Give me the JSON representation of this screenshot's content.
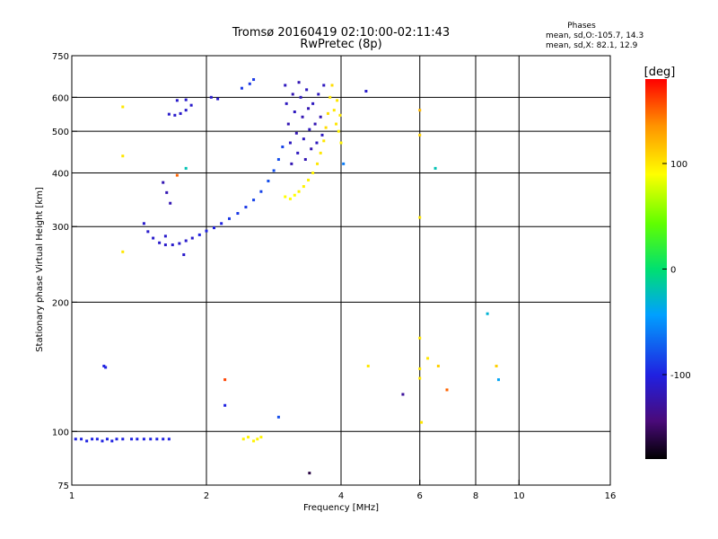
{
  "chart_data": {
    "type": "scatter",
    "title": "Tromsø 20160419 02:10:00-02:11:43",
    "subtitle": "RwPretec (8p)",
    "xlabel": "Frequency [MHz]",
    "ylabel": "Stationary phase Virtual Height [km]",
    "x_scale": "log",
    "y_scale": "log",
    "xlim": [
      1,
      16
    ],
    "ylim": [
      75,
      750
    ],
    "x_ticks": [
      1,
      2,
      4,
      6,
      8,
      10,
      16
    ],
    "y_ticks": [
      75,
      100,
      200,
      300,
      400,
      500,
      600,
      750
    ],
    "grid": true,
    "stats": {
      "heading": "Phases",
      "line_o": "mean, sd,O:-105.7, 14.3",
      "line_x": "mean, sd,X:  82.1, 12.9"
    },
    "colorbar": {
      "label": "[deg]",
      "ticks": [
        100,
        0,
        -100
      ],
      "range": [
        -180,
        180
      ]
    },
    "series": [
      {
        "points": [
          {
            "x": 1.02,
            "y": 96,
            "p": -100
          },
          {
            "x": 1.05,
            "y": 96,
            "p": -100
          },
          {
            "x": 1.08,
            "y": 95,
            "p": -100
          },
          {
            "x": 1.11,
            "y": 96,
            "p": -100
          },
          {
            "x": 1.14,
            "y": 96,
            "p": -100
          },
          {
            "x": 1.17,
            "y": 95,
            "p": -100
          },
          {
            "x": 1.2,
            "y": 96,
            "p": -100
          },
          {
            "x": 1.23,
            "y": 95,
            "p": -100
          },
          {
            "x": 1.26,
            "y": 96,
            "p": -100
          },
          {
            "x": 1.3,
            "y": 96,
            "p": -100
          },
          {
            "x": 1.36,
            "y": 96,
            "p": -100
          },
          {
            "x": 1.4,
            "y": 96,
            "p": -100
          },
          {
            "x": 1.45,
            "y": 96,
            "p": -100
          },
          {
            "x": 1.5,
            "y": 96,
            "p": -100
          },
          {
            "x": 1.55,
            "y": 96,
            "p": -100
          },
          {
            "x": 1.6,
            "y": 96,
            "p": -100
          },
          {
            "x": 1.65,
            "y": 96,
            "p": -100
          },
          {
            "x": 1.18,
            "y": 142,
            "p": -100
          },
          {
            "x": 1.19,
            "y": 141,
            "p": -100
          },
          {
            "x": 1.3,
            "y": 570,
            "p": 100
          },
          {
            "x": 1.3,
            "y": 438,
            "p": 100
          },
          {
            "x": 1.3,
            "y": 262,
            "p": 100
          },
          {
            "x": 1.45,
            "y": 305,
            "p": -110
          },
          {
            "x": 1.48,
            "y": 292,
            "p": -110
          },
          {
            "x": 1.52,
            "y": 282,
            "p": -110
          },
          {
            "x": 1.57,
            "y": 275,
            "p": -110
          },
          {
            "x": 1.62,
            "y": 272,
            "p": -110
          },
          {
            "x": 1.68,
            "y": 272,
            "p": -110
          },
          {
            "x": 1.74,
            "y": 274,
            "p": -110
          },
          {
            "x": 1.8,
            "y": 278,
            "p": -110
          },
          {
            "x": 1.86,
            "y": 282,
            "p": -110
          },
          {
            "x": 1.93,
            "y": 287,
            "p": -100
          },
          {
            "x": 2.0,
            "y": 293,
            "p": -100
          },
          {
            "x": 2.08,
            "y": 298,
            "p": -100
          },
          {
            "x": 2.16,
            "y": 305,
            "p": -100
          },
          {
            "x": 2.25,
            "y": 313,
            "p": -90
          },
          {
            "x": 2.35,
            "y": 322,
            "p": -90
          },
          {
            "x": 2.45,
            "y": 333,
            "p": -90
          },
          {
            "x": 2.55,
            "y": 346,
            "p": -85
          },
          {
            "x": 2.65,
            "y": 362,
            "p": -85
          },
          {
            "x": 2.75,
            "y": 383,
            "p": -80
          },
          {
            "x": 2.83,
            "y": 405,
            "p": -80
          },
          {
            "x": 2.9,
            "y": 430,
            "p": -80
          },
          {
            "x": 2.96,
            "y": 460,
            "p": -85
          },
          {
            "x": 1.6,
            "y": 380,
            "p": -120
          },
          {
            "x": 1.63,
            "y": 360,
            "p": -120
          },
          {
            "x": 1.66,
            "y": 340,
            "p": -120
          },
          {
            "x": 1.72,
            "y": 395,
            "p": 150
          },
          {
            "x": 1.65,
            "y": 548,
            "p": -110
          },
          {
            "x": 1.7,
            "y": 545,
            "p": -110
          },
          {
            "x": 1.75,
            "y": 550,
            "p": -110
          },
          {
            "x": 1.8,
            "y": 560,
            "p": -110
          },
          {
            "x": 1.85,
            "y": 575,
            "p": -110
          },
          {
            "x": 1.72,
            "y": 590,
            "p": -110
          },
          {
            "x": 1.8,
            "y": 592,
            "p": -110
          },
          {
            "x": 2.05,
            "y": 600,
            "p": -110
          },
          {
            "x": 2.12,
            "y": 595,
            "p": -110
          },
          {
            "x": 2.4,
            "y": 630,
            "p": -90
          },
          {
            "x": 2.5,
            "y": 645,
            "p": -90
          },
          {
            "x": 2.55,
            "y": 660,
            "p": -90
          },
          {
            "x": 3.0,
            "y": 640,
            "p": -115
          },
          {
            "x": 3.02,
            "y": 580,
            "p": -115
          },
          {
            "x": 3.05,
            "y": 520,
            "p": -120
          },
          {
            "x": 3.08,
            "y": 470,
            "p": -115
          },
          {
            "x": 3.1,
            "y": 420,
            "p": -120
          },
          {
            "x": 3.12,
            "y": 610,
            "p": -120
          },
          {
            "x": 3.15,
            "y": 555,
            "p": -115
          },
          {
            "x": 3.18,
            "y": 495,
            "p": -120
          },
          {
            "x": 3.2,
            "y": 445,
            "p": -115
          },
          {
            "x": 3.22,
            "y": 650,
            "p": -120
          },
          {
            "x": 3.25,
            "y": 600,
            "p": -115
          },
          {
            "x": 3.28,
            "y": 540,
            "p": -120
          },
          {
            "x": 3.3,
            "y": 480,
            "p": -115
          },
          {
            "x": 3.33,
            "y": 430,
            "p": -120
          },
          {
            "x": 3.35,
            "y": 625,
            "p": -115
          },
          {
            "x": 3.38,
            "y": 565,
            "p": -120
          },
          {
            "x": 3.4,
            "y": 505,
            "p": -115
          },
          {
            "x": 3.43,
            "y": 455,
            "p": -120
          },
          {
            "x": 3.46,
            "y": 580,
            "p": -115
          },
          {
            "x": 3.5,
            "y": 520,
            "p": -120
          },
          {
            "x": 3.53,
            "y": 470,
            "p": -115
          },
          {
            "x": 3.56,
            "y": 610,
            "p": -115
          },
          {
            "x": 3.6,
            "y": 540,
            "p": -120
          },
          {
            "x": 3.63,
            "y": 490,
            "p": -115
          },
          {
            "x": 3.66,
            "y": 640,
            "p": -115
          },
          {
            "x": 3.0,
            "y": 352,
            "p": 90
          },
          {
            "x": 3.08,
            "y": 348,
            "p": 90
          },
          {
            "x": 3.15,
            "y": 355,
            "p": 90
          },
          {
            "x": 3.22,
            "y": 362,
            "p": 95
          },
          {
            "x": 3.3,
            "y": 372,
            "p": 95
          },
          {
            "x": 3.38,
            "y": 385,
            "p": 95
          },
          {
            "x": 3.46,
            "y": 400,
            "p": 95
          },
          {
            "x": 3.54,
            "y": 420,
            "p": 100
          },
          {
            "x": 3.6,
            "y": 445,
            "p": 100
          },
          {
            "x": 3.66,
            "y": 475,
            "p": 100
          },
          {
            "x": 3.7,
            "y": 510,
            "p": 105
          },
          {
            "x": 3.74,
            "y": 550,
            "p": 105
          },
          {
            "x": 3.78,
            "y": 600,
            "p": 100
          },
          {
            "x": 3.82,
            "y": 640,
            "p": 105
          },
          {
            "x": 3.86,
            "y": 560,
            "p": 100
          },
          {
            "x": 3.9,
            "y": 520,
            "p": 100
          },
          {
            "x": 3.95,
            "y": 500,
            "p": 95
          },
          {
            "x": 4.0,
            "y": 470,
            "p": 95
          },
          {
            "x": 3.92,
            "y": 590,
            "p": 100
          },
          {
            "x": 3.98,
            "y": 545,
            "p": 100
          },
          {
            "x": 2.42,
            "y": 96,
            "p": 95
          },
          {
            "x": 2.48,
            "y": 97,
            "p": 95
          },
          {
            "x": 2.55,
            "y": 95,
            "p": 95
          },
          {
            "x": 2.6,
            "y": 96,
            "p": 95
          },
          {
            "x": 2.65,
            "y": 97,
            "p": 95
          },
          {
            "x": 1.8,
            "y": 410,
            "p": -20
          },
          {
            "x": 1.78,
            "y": 258,
            "p": -110
          },
          {
            "x": 1.62,
            "y": 285,
            "p": -110
          },
          {
            "x": 2.2,
            "y": 132,
            "p": 160
          },
          {
            "x": 2.2,
            "y": 115,
            "p": -100
          },
          {
            "x": 2.9,
            "y": 108,
            "p": -80
          },
          {
            "x": 3.4,
            "y": 80,
            "p": -160
          },
          {
            "x": 4.05,
            "y": 420,
            "p": -60
          },
          {
            "x": 4.55,
            "y": 620,
            "p": -110
          },
          {
            "x": 4.6,
            "y": 142,
            "p": 100
          },
          {
            "x": 5.5,
            "y": 122,
            "p": -130
          },
          {
            "x": 6.0,
            "y": 560,
            "p": 120
          },
          {
            "x": 6.0,
            "y": 490,
            "p": 110
          },
          {
            "x": 6.0,
            "y": 315,
            "p": 100
          },
          {
            "x": 6.0,
            "y": 165,
            "p": 100
          },
          {
            "x": 6.0,
            "y": 140,
            "p": 100
          },
          {
            "x": 6.0,
            "y": 133,
            "p": 100
          },
          {
            "x": 6.05,
            "y": 105,
            "p": 100
          },
          {
            "x": 6.25,
            "y": 148,
            "p": 100
          },
          {
            "x": 6.5,
            "y": 410,
            "p": -20
          },
          {
            "x": 6.6,
            "y": 142,
            "p": 110
          },
          {
            "x": 6.9,
            "y": 125,
            "p": 150
          },
          {
            "x": 8.5,
            "y": 188,
            "p": -30
          },
          {
            "x": 8.9,
            "y": 142,
            "p": 110
          },
          {
            "x": 9.0,
            "y": 132,
            "p": -40
          }
        ]
      }
    ]
  }
}
